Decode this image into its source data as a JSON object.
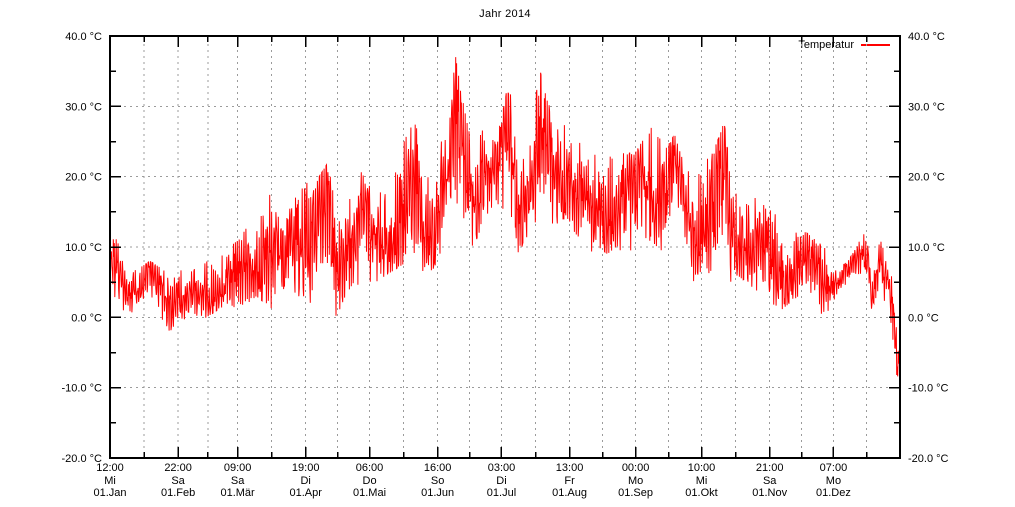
{
  "chart_data": {
    "type": "line",
    "title": "Jahr 2014",
    "background_color": "#ffffff",
    "axis_color": "#000000",
    "grid_color": "#9b9b9b",
    "grid": "dashed, vertical lines at every half-month tick, horizontal at 10 degree steps",
    "legend_position": "top-right inside plot",
    "series": [
      {
        "name": "Temperatur",
        "color": "#ff0000",
        "envelope_day_min_max": [
          [
            0,
            3,
            9
          ],
          [
            2,
            2,
            12
          ],
          [
            5,
            1,
            10
          ],
          [
            9,
            1,
            8
          ],
          [
            14,
            0,
            7
          ],
          [
            19,
            1,
            8
          ],
          [
            24,
            0,
            7
          ],
          [
            28,
            -2,
            6
          ],
          [
            32,
            -1,
            7
          ],
          [
            36,
            -2,
            6
          ],
          [
            40,
            -1,
            7
          ],
          [
            45,
            0,
            8
          ],
          [
            50,
            1,
            9
          ],
          [
            55,
            2,
            10
          ],
          [
            60,
            1,
            11
          ],
          [
            64,
            2,
            13
          ],
          [
            68,
            3,
            16
          ],
          [
            72,
            2,
            18
          ],
          [
            76,
            1,
            17
          ],
          [
            80,
            -2,
            12
          ],
          [
            84,
            1,
            16
          ],
          [
            87,
            3,
            20
          ],
          [
            90,
            3,
            21
          ],
          [
            93,
            2,
            17
          ],
          [
            97,
            3,
            20
          ],
          [
            101,
            4,
            22
          ],
          [
            105,
            0,
            15
          ],
          [
            109,
            3,
            19
          ],
          [
            113,
            5,
            22
          ],
          [
            118,
            4,
            20
          ],
          [
            123,
            5,
            17
          ],
          [
            128,
            6,
            22
          ],
          [
            133,
            7,
            24
          ],
          [
            138,
            8,
            26
          ],
          [
            142,
            8,
            29
          ],
          [
            146,
            6,
            20
          ],
          [
            150,
            7,
            23
          ],
          [
            154,
            10,
            27
          ],
          [
            158,
            13,
            32
          ],
          [
            160,
            15,
            37
          ],
          [
            162,
            14,
            33
          ],
          [
            165,
            12,
            28
          ],
          [
            168,
            10,
            24
          ],
          [
            171,
            12,
            27
          ],
          [
            174,
            13,
            26
          ],
          [
            178,
            12,
            25
          ],
          [
            181,
            13,
            28
          ],
          [
            184,
            14,
            33
          ],
          [
            186,
            13,
            31
          ],
          [
            189,
            9,
            20
          ],
          [
            192,
            11,
            25
          ],
          [
            196,
            13,
            30
          ],
          [
            199,
            15,
            35
          ],
          [
            202,
            14,
            31
          ],
          [
            206,
            13,
            28
          ],
          [
            209,
            14,
            30
          ],
          [
            212,
            14,
            29
          ],
          [
            215,
            12,
            27
          ],
          [
            218,
            11,
            24
          ],
          [
            222,
            9,
            22
          ],
          [
            226,
            10,
            24
          ],
          [
            230,
            9,
            25
          ],
          [
            234,
            10,
            26
          ],
          [
            238,
            9,
            24
          ],
          [
            242,
            9,
            23
          ],
          [
            246,
            10,
            25
          ],
          [
            250,
            11,
            27
          ],
          [
            253,
            10,
            26
          ],
          [
            257,
            9,
            24
          ],
          [
            261,
            10,
            26
          ],
          [
            264,
            9,
            23
          ],
          [
            267,
            7,
            21
          ],
          [
            270,
            5,
            19
          ],
          [
            274,
            7,
            22
          ],
          [
            278,
            6,
            23
          ],
          [
            282,
            7,
            26
          ],
          [
            284,
            8,
            28
          ],
          [
            287,
            5,
            20
          ],
          [
            290,
            6,
            21
          ],
          [
            294,
            5,
            19
          ],
          [
            298,
            4,
            17
          ],
          [
            302,
            3,
            16
          ],
          [
            306,
            2,
            15
          ],
          [
            310,
            1,
            14
          ],
          [
            314,
            2,
            13
          ],
          [
            318,
            3,
            13
          ],
          [
            322,
            2,
            12
          ],
          [
            326,
            1,
            11
          ],
          [
            330,
            0,
            10
          ],
          [
            334,
            2,
            8
          ],
          [
            337,
            3,
            7
          ],
          [
            341,
            4,
            8
          ],
          [
            345,
            5,
            10
          ],
          [
            348,
            7,
            12
          ],
          [
            350,
            5,
            11
          ],
          [
            352,
            0,
            7
          ],
          [
            354,
            3,
            9
          ],
          [
            356,
            5,
            11
          ],
          [
            358,
            2,
            9
          ],
          [
            360,
            0,
            8
          ],
          [
            361.5,
            -4,
            5
          ],
          [
            363,
            -10,
            0
          ],
          [
            364,
            -13,
            -5
          ],
          [
            364.7,
            -8,
            -2
          ],
          [
            365,
            -3,
            0
          ]
        ]
      }
    ],
    "y_axis": {
      "unit": "°C",
      "min": -20,
      "max": 40,
      "tick_step": 10,
      "minor_step": 5,
      "labeled_both_sides": true,
      "ticks": [
        {
          "v": -20,
          "label": "-20.0 °C"
        },
        {
          "v": -10,
          "label": "-10.0 °C"
        },
        {
          "v": 0,
          "label": "0.0 °C"
        },
        {
          "v": 10,
          "label": "10.0 °C"
        },
        {
          "v": 20,
          "label": "20.0 °C"
        },
        {
          "v": 30,
          "label": "30.0 °C"
        },
        {
          "v": 40,
          "label": "40.0 °C"
        }
      ]
    },
    "x_axis": {
      "start_day": 0.5,
      "end_day": 365,
      "ticks": [
        {
          "d": 0.5,
          "time": "12:00",
          "weekday": "Mi",
          "date": "01.Jan"
        },
        {
          "d": 31.9167,
          "time": "22:00",
          "weekday": "Sa",
          "date": "01.Feb"
        },
        {
          "d": 59.375,
          "time": "09:00",
          "weekday": "Sa",
          "date": "01.Mär"
        },
        {
          "d": 90.7917,
          "time": "19:00",
          "weekday": "Di",
          "date": "01.Apr"
        },
        {
          "d": 120.25,
          "time": "06:00",
          "weekday": "Do",
          "date": "01.Mai"
        },
        {
          "d": 151.6667,
          "time": "16:00",
          "weekday": "So",
          "date": "01.Jun"
        },
        {
          "d": 181.125,
          "time": "03:00",
          "weekday": "Di",
          "date": "01.Jul"
        },
        {
          "d": 212.5417,
          "time": "13:00",
          "weekday": "Fr",
          "date": "01.Aug"
        },
        {
          "d": 243.0,
          "time": "00:00",
          "weekday": "Mo",
          "date": "01.Sep"
        },
        {
          "d": 273.4167,
          "time": "10:00",
          "weekday": "Mi",
          "date": "01.Okt"
        },
        {
          "d": 304.875,
          "time": "21:00",
          "weekday": "Sa",
          "date": "01.Nov"
        },
        {
          "d": 334.2917,
          "time": "07:00",
          "weekday": "Mo",
          "date": "01.Dez"
        }
      ]
    }
  }
}
